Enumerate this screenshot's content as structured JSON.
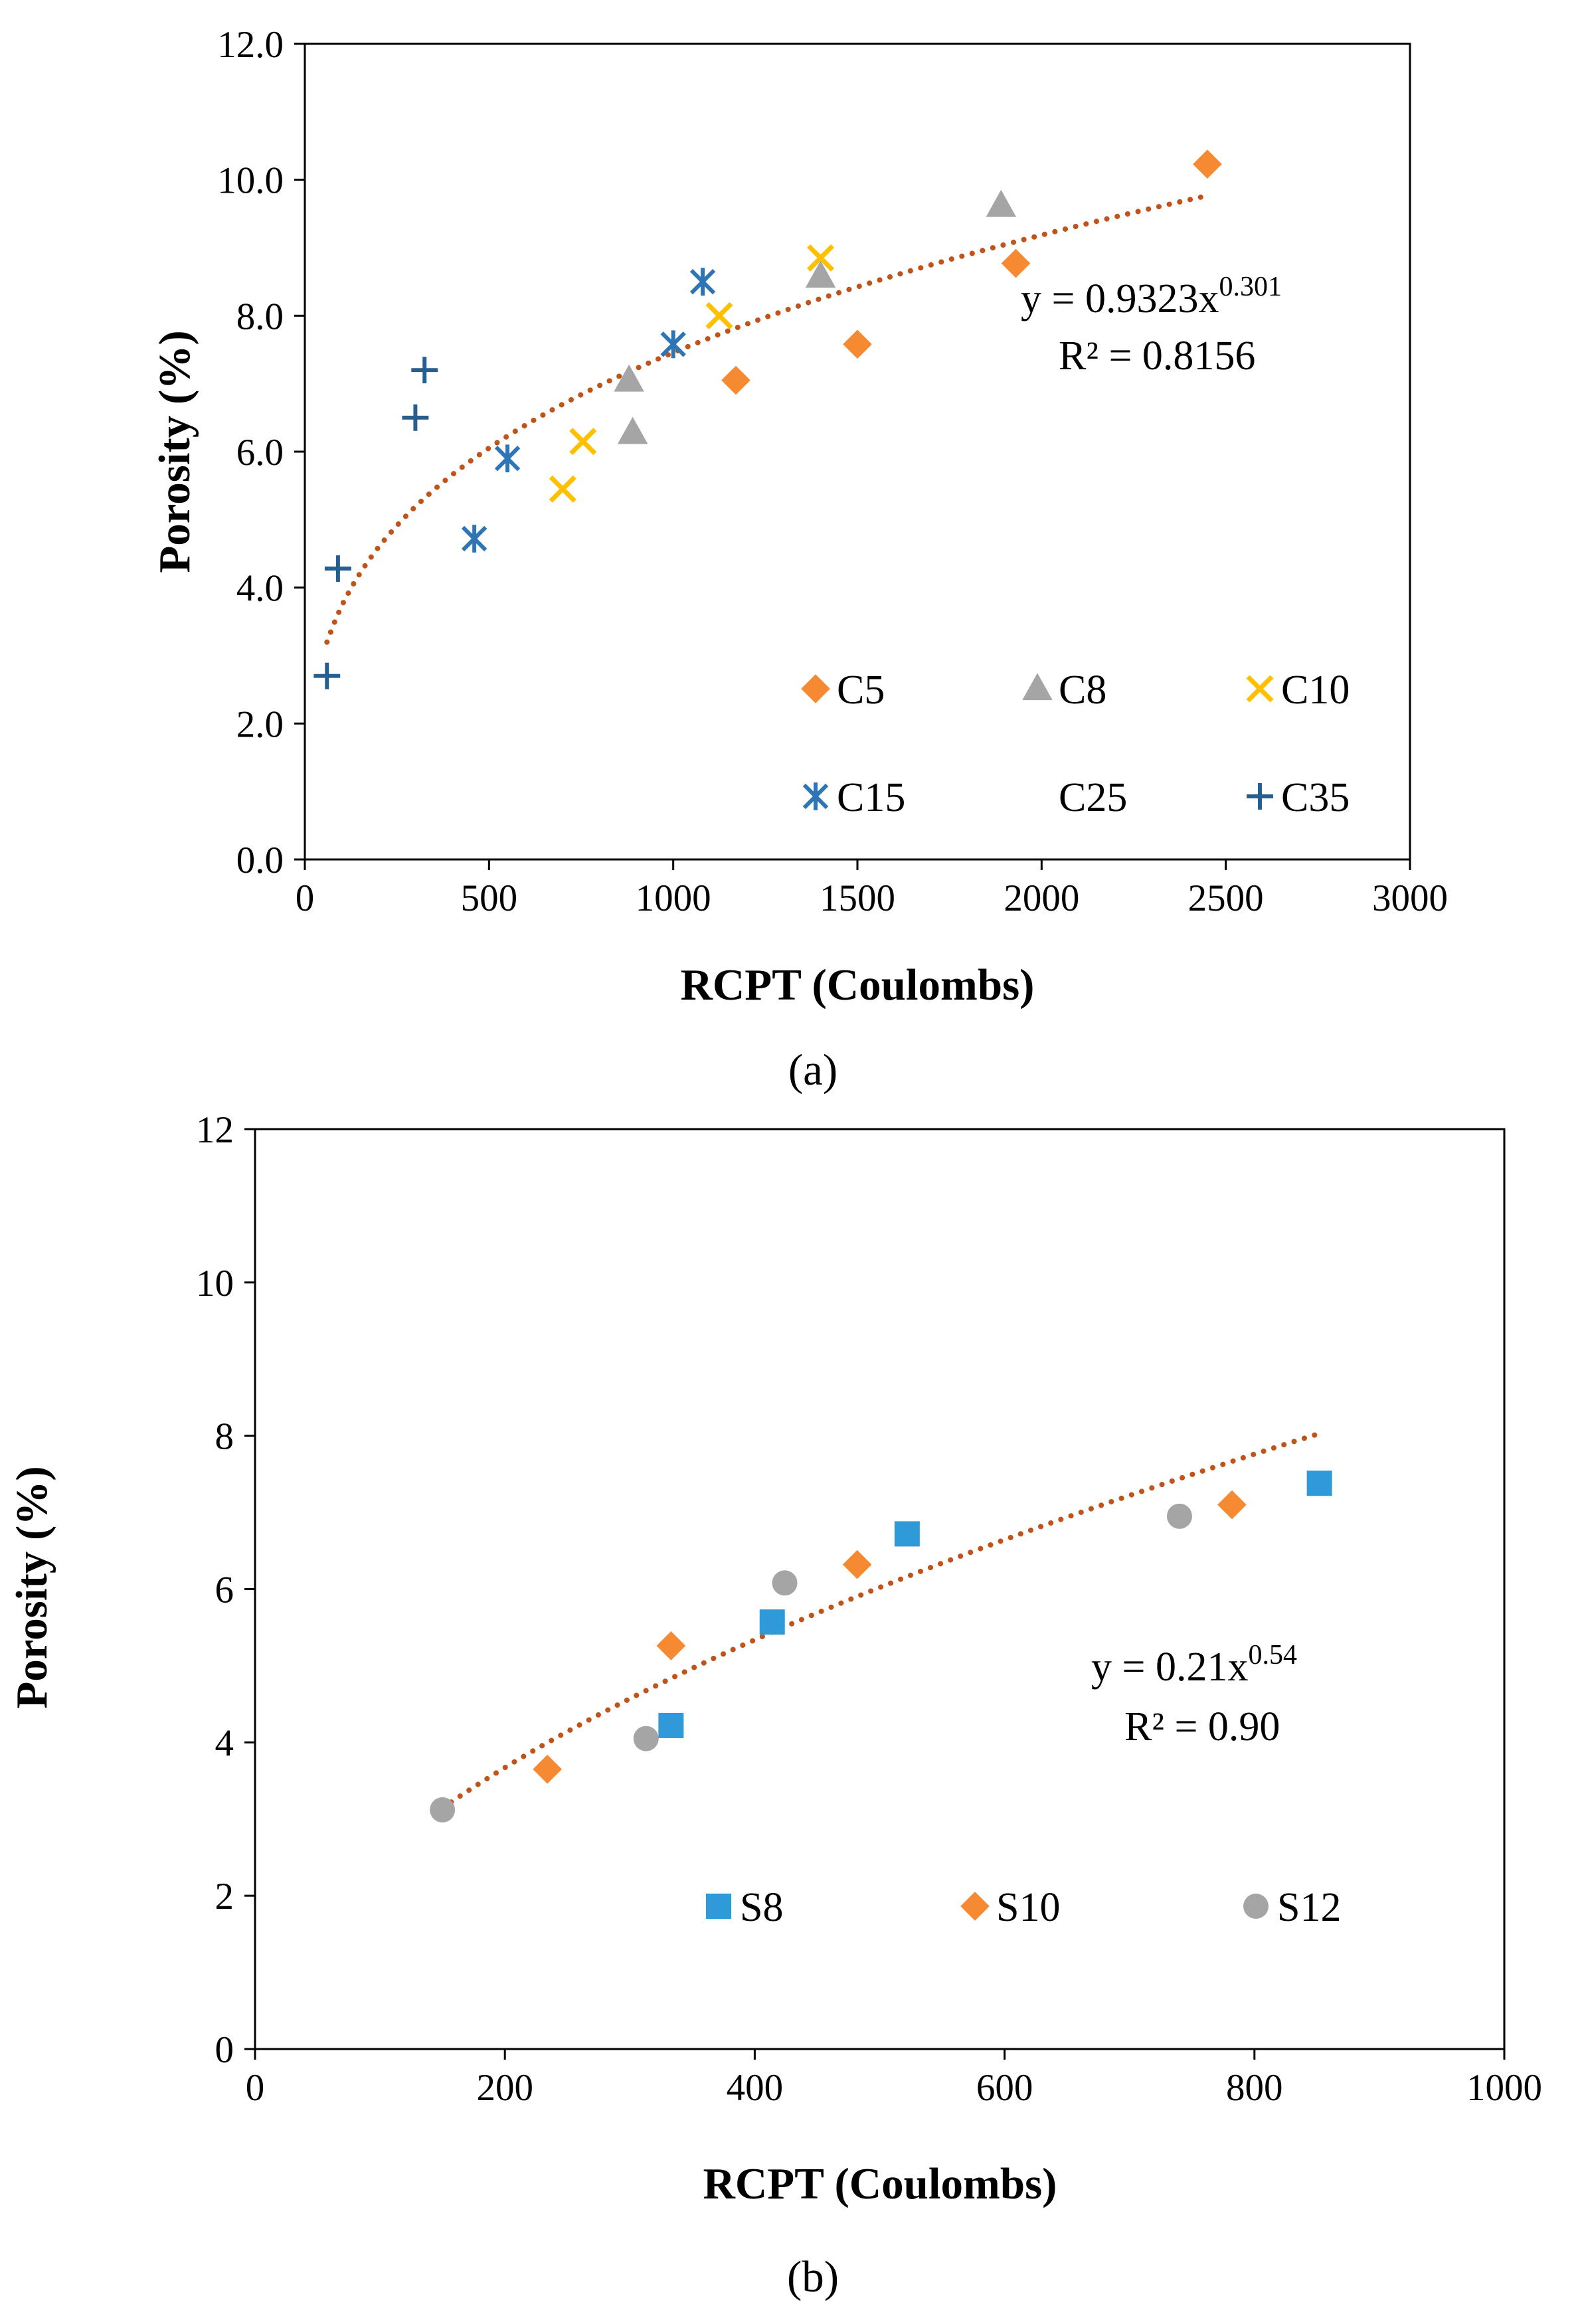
{
  "chart_data": [
    {
      "type": "scatter",
      "panel": "(a)",
      "xlabel": "RCPT (Coulombs)",
      "ylabel": "Porosity (%)",
      "xlim": [
        0,
        3000
      ],
      "ylim": [
        0,
        12
      ],
      "xticks": [
        "0",
        "500",
        "1000",
        "1500",
        "2000",
        "2500",
        "3000"
      ],
      "yticks": [
        "0.0",
        "2.0",
        "4.0",
        "6.0",
        "8.0",
        "10.0",
        "12.0"
      ],
      "grid": false,
      "legend_position": "bottom-right",
      "series": [
        {
          "name": "C5",
          "marker": "diamond",
          "color": "#F58A33",
          "points": [
            [
              1170,
              7.05
            ],
            [
              1500,
              7.58
            ],
            [
              1930,
              8.77
            ],
            [
              2450,
              10.23
            ]
          ]
        },
        {
          "name": "C8",
          "marker": "triangle",
          "color": "#A5A5A5",
          "points": [
            [
              880,
              7.05
            ],
            [
              890,
              6.28
            ],
            [
              1400,
              8.58
            ],
            [
              1890,
              9.62
            ]
          ]
        },
        {
          "name": "C10",
          "marker": "x",
          "color": "#FFC000",
          "points": [
            [
              700,
              5.45
            ],
            [
              755,
              6.15
            ],
            [
              1125,
              8.0
            ],
            [
              1400,
              8.85
            ]
          ]
        },
        {
          "name": "C15",
          "marker": "asterisk",
          "color": "#2E75B6",
          "points": [
            [
              460,
              4.72
            ],
            [
              550,
              5.9
            ],
            [
              1000,
              7.58
            ],
            [
              1080,
              8.5
            ]
          ]
        },
        {
          "name": "C25",
          "marker": "none",
          "color": "#4472C4",
          "points": []
        },
        {
          "name": "C35",
          "marker": "plus",
          "color": "#255E91",
          "points": [
            [
              60,
              2.7
            ],
            [
              90,
              4.28
            ],
            [
              300,
              6.5
            ],
            [
              325,
              7.2
            ]
          ]
        }
      ],
      "trendline": {
        "type": "power",
        "a": 0.9323,
        "b": 0.301,
        "x_range": [
          60,
          2450
        ],
        "color": "#C0531A"
      },
      "equation": {
        "prefix": "y = 0.9323x",
        "exponent": "0.301",
        "r2": "R² = 0.8156"
      },
      "caption": "(a)"
    },
    {
      "type": "scatter",
      "panel": "(b)",
      "xlabel": "RCPT (Coulombs)",
      "ylabel": "Porosity (%)",
      "xlim": [
        0,
        1000
      ],
      "ylim": [
        0,
        12
      ],
      "xticks": [
        "0",
        "200",
        "400",
        "600",
        "800",
        "1000"
      ],
      "yticks": [
        "0",
        "2",
        "4",
        "6",
        "8",
        "10",
        "12"
      ],
      "grid": false,
      "legend_position": "bottom-right",
      "series": [
        {
          "name": "S8",
          "marker": "square",
          "color": "#2E9BD8",
          "points": [
            [
              333,
              4.22
            ],
            [
              414,
              5.57
            ],
            [
              522,
              6.72
            ],
            [
              852,
              7.38
            ]
          ]
        },
        {
          "name": "S10",
          "marker": "diamond",
          "color": "#F58A33",
          "points": [
            [
              234,
              3.65
            ],
            [
              333,
              5.26
            ],
            [
              482,
              6.32
            ],
            [
              782,
              7.1
            ]
          ]
        },
        {
          "name": "S12",
          "marker": "circle",
          "color": "#A5A5A5",
          "points": [
            [
              150,
              3.12
            ],
            [
              313,
              4.05
            ],
            [
              424,
              6.08
            ],
            [
              740,
              6.95
            ]
          ]
        }
      ],
      "trendline": {
        "type": "power",
        "a": 0.21,
        "b": 0.54,
        "x_range": [
          150,
          852
        ],
        "color": "#C0531A"
      },
      "equation": {
        "prefix": "y = 0.21x",
        "exponent": "0.54",
        "r2": "R² = 0.90"
      },
      "caption": "(b)"
    }
  ]
}
